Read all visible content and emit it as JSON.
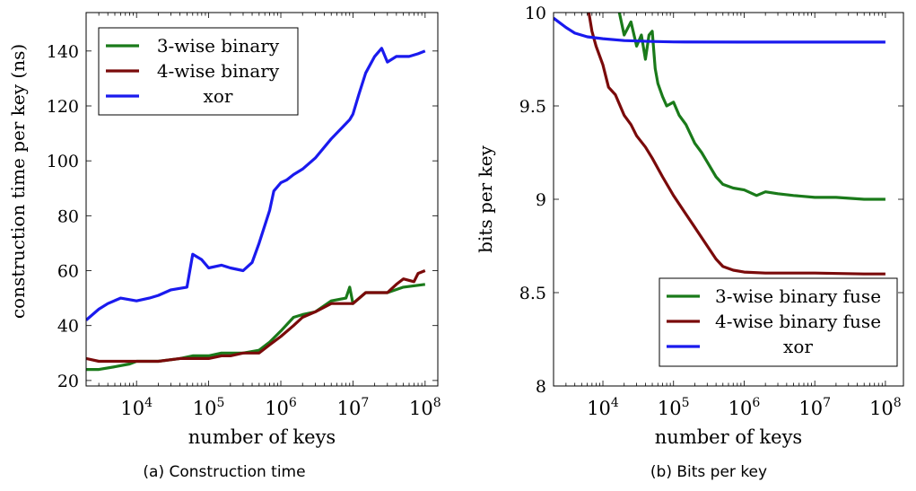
{
  "captions": [
    "(a) Construction time",
    "(b) Bits per key"
  ],
  "chart_data": [
    {
      "type": "line",
      "title": "",
      "xlabel": "number of keys",
      "ylabel": "construction time per key (ns)",
      "xscale": "log",
      "xlim": [
        2000,
        150000000
      ],
      "ylim": [
        18,
        154
      ],
      "xticks": [
        10000,
        100000,
        1000000,
        10000000,
        100000000
      ],
      "xtick_labels": [
        [
          "10",
          "4"
        ],
        [
          "10",
          "5"
        ],
        [
          "10",
          "6"
        ],
        [
          "10",
          "7"
        ],
        [
          "10",
          "8"
        ]
      ],
      "yticks": [
        20,
        40,
        60,
        80,
        100,
        120,
        140
      ],
      "ytick_labels": [
        "20",
        "40",
        "60",
        "80",
        "100",
        "120",
        "140"
      ],
      "grid": false,
      "legend": "top-left",
      "series": [
        {
          "name": "3-wise binary",
          "color": "#1a7a1a",
          "points": [
            [
              2000,
              24
            ],
            [
              3000,
              24
            ],
            [
              5000,
              25
            ],
            [
              8000,
              26
            ],
            [
              10000,
              27
            ],
            [
              20000,
              27
            ],
            [
              40000,
              28
            ],
            [
              60000,
              29
            ],
            [
              100000,
              29
            ],
            [
              150000,
              30
            ],
            [
              200000,
              30
            ],
            [
              300000,
              30
            ],
            [
              500000,
              31
            ],
            [
              700000,
              34
            ],
            [
              1000000,
              38
            ],
            [
              1500000,
              43
            ],
            [
              2000000,
              44
            ],
            [
              3000000,
              45
            ],
            [
              5000000,
              49
            ],
            [
              8000000,
              50
            ],
            [
              9000000,
              54
            ],
            [
              10000000,
              48
            ],
            [
              15000000,
              52
            ],
            [
              20000000,
              52
            ],
            [
              30000000,
              52
            ],
            [
              50000000,
              54
            ],
            [
              100000000,
              55
            ]
          ]
        },
        {
          "name": "4-wise binary",
          "color": "#7a0a0a",
          "points": [
            [
              2000,
              28
            ],
            [
              3000,
              27
            ],
            [
              5000,
              27
            ],
            [
              10000,
              27
            ],
            [
              20000,
              27
            ],
            [
              40000,
              28
            ],
            [
              60000,
              28
            ],
            [
              100000,
              28
            ],
            [
              150000,
              29
            ],
            [
              200000,
              29
            ],
            [
              300000,
              30
            ],
            [
              500000,
              30
            ],
            [
              700000,
              33
            ],
            [
              1000000,
              36
            ],
            [
              1500000,
              40
            ],
            [
              2000000,
              43
            ],
            [
              3000000,
              45
            ],
            [
              5000000,
              48
            ],
            [
              10000000,
              48
            ],
            [
              15000000,
              52
            ],
            [
              20000000,
              52
            ],
            [
              30000000,
              52
            ],
            [
              40000000,
              55
            ],
            [
              50000000,
              57
            ],
            [
              70000000,
              56
            ],
            [
              80000000,
              59
            ],
            [
              100000000,
              60
            ]
          ]
        },
        {
          "name": "xor",
          "color": "#1a1aee",
          "points": [
            [
              2000,
              42
            ],
            [
              3000,
              46
            ],
            [
              4000,
              48
            ],
            [
              6000,
              50
            ],
            [
              10000,
              49
            ],
            [
              15000,
              50
            ],
            [
              20000,
              51
            ],
            [
              30000,
              53
            ],
            [
              50000,
              54
            ],
            [
              60000,
              66
            ],
            [
              80000,
              64
            ],
            [
              100000,
              61
            ],
            [
              150000,
              62
            ],
            [
              200000,
              61
            ],
            [
              300000,
              60
            ],
            [
              400000,
              63
            ],
            [
              500000,
              70
            ],
            [
              700000,
              82
            ],
            [
              800000,
              89
            ],
            [
              1000000,
              92
            ],
            [
              1200000,
              93
            ],
            [
              1500000,
              95
            ],
            [
              2000000,
              97
            ],
            [
              3000000,
              101
            ],
            [
              5000000,
              108
            ],
            [
              7000000,
              112
            ],
            [
              9000000,
              115
            ],
            [
              10000000,
              117
            ],
            [
              12000000,
              124
            ],
            [
              15000000,
              132
            ],
            [
              20000000,
              138
            ],
            [
              25000000,
              141
            ],
            [
              30000000,
              136
            ],
            [
              40000000,
              138
            ],
            [
              60000000,
              138
            ],
            [
              80000000,
              139
            ],
            [
              100000000,
              140
            ]
          ]
        }
      ]
    },
    {
      "type": "line",
      "title": "",
      "xlabel": "number of keys",
      "ylabel": "bits per key",
      "xscale": "log",
      "xlim": [
        2000,
        180000000
      ],
      "ylim": [
        8,
        10
      ],
      "xticks": [
        10000,
        100000,
        1000000,
        10000000,
        100000000
      ],
      "xtick_labels": [
        [
          "10",
          "4"
        ],
        [
          "10",
          "5"
        ],
        [
          "10",
          "6"
        ],
        [
          "10",
          "7"
        ],
        [
          "10",
          "8"
        ]
      ],
      "yticks": [
        8,
        8.5,
        9,
        9.5,
        10
      ],
      "ytick_labels": [
        "8",
        "8.5",
        "9",
        "9.5",
        "10"
      ],
      "grid": false,
      "legend": "bottom-right",
      "series": [
        {
          "name": "3-wise binary fuse",
          "color": "#1a7a1a",
          "points": [
            [
              16000,
              10.05
            ],
            [
              20000,
              9.88
            ],
            [
              25000,
              9.95
            ],
            [
              30000,
              9.82
            ],
            [
              35000,
              9.88
            ],
            [
              40000,
              9.75
            ],
            [
              45000,
              9.88
            ],
            [
              50000,
              9.9
            ],
            [
              55000,
              9.7
            ],
            [
              60000,
              9.62
            ],
            [
              70000,
              9.55
            ],
            [
              80000,
              9.5
            ],
            [
              100000,
              9.52
            ],
            [
              120000,
              9.45
            ],
            [
              150000,
              9.4
            ],
            [
              200000,
              9.3
            ],
            [
              250000,
              9.25
            ],
            [
              300000,
              9.2
            ],
            [
              400000,
              9.12
            ],
            [
              500000,
              9.08
            ],
            [
              700000,
              9.06
            ],
            [
              1000000,
              9.05
            ],
            [
              1500000,
              9.02
            ],
            [
              2000000,
              9.04
            ],
            [
              3000000,
              9.03
            ],
            [
              5000000,
              9.02
            ],
            [
              10000000,
              9.01
            ],
            [
              20000000,
              9.01
            ],
            [
              50000000,
              9.0
            ],
            [
              100000000,
              9.0
            ]
          ]
        },
        {
          "name": "4-wise binary fuse",
          "color": "#7a0a0a",
          "points": [
            [
              6000,
              10.05
            ],
            [
              7000,
              9.9
            ],
            [
              8000,
              9.82
            ],
            [
              10000,
              9.72
            ],
            [
              12000,
              9.6
            ],
            [
              15000,
              9.56
            ],
            [
              20000,
              9.45
            ],
            [
              25000,
              9.4
            ],
            [
              30000,
              9.34
            ],
            [
              40000,
              9.28
            ],
            [
              50000,
              9.22
            ],
            [
              70000,
              9.12
            ],
            [
              100000,
              9.02
            ],
            [
              150000,
              8.92
            ],
            [
              200000,
              8.85
            ],
            [
              300000,
              8.75
            ],
            [
              400000,
              8.68
            ],
            [
              500000,
              8.64
            ],
            [
              700000,
              8.62
            ],
            [
              1000000,
              8.61
            ],
            [
              2000000,
              8.605
            ],
            [
              5000000,
              8.605
            ],
            [
              10000000,
              8.605
            ],
            [
              50000000,
              8.6
            ],
            [
              100000000,
              8.6
            ]
          ]
        },
        {
          "name": "xor",
          "color": "#1a1aee",
          "points": [
            [
              2000,
              9.97
            ],
            [
              3000,
              9.92
            ],
            [
              4000,
              9.89
            ],
            [
              6000,
              9.87
            ],
            [
              10000,
              9.86
            ],
            [
              20000,
              9.85
            ],
            [
              50000,
              9.845
            ],
            [
              100000,
              9.843
            ],
            [
              1000000,
              9.842
            ],
            [
              10000000,
              9.842
            ],
            [
              100000000,
              9.842
            ]
          ]
        }
      ]
    }
  ]
}
